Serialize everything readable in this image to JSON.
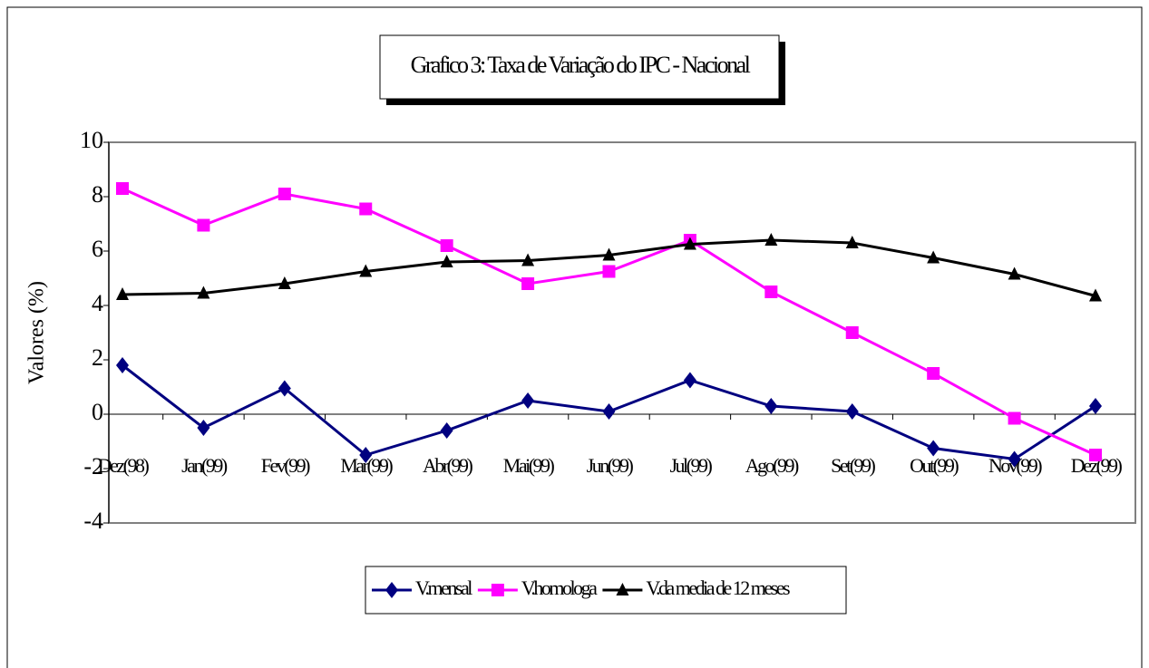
{
  "chart_data": {
    "type": "line",
    "title": "Grafico 3: Taxa de Variação do IPC - Nacional",
    "y_label": "Valores (%)",
    "categories": [
      "Dez(98)",
      "Jan(99)",
      "Fev(99)",
      "Mar(99)",
      "Abr(99)",
      "Mai(99)",
      "Jun(99)",
      "Jul(99)",
      "Ago(99)",
      "Set(99)",
      "Out(99)",
      "Nov(99)",
      "Dez(99)"
    ],
    "series": [
      {
        "name": "V.mensal",
        "color": "#000080",
        "marker": "diamond",
        "values": [
          1.8,
          -0.5,
          0.95,
          -1.5,
          -0.6,
          0.5,
          0.1,
          1.25,
          0.3,
          0.1,
          -1.25,
          -1.65,
          0.3
        ]
      },
      {
        "name": "V.homologa",
        "color": "#ff00ff",
        "marker": "square",
        "values": [
          8.3,
          6.95,
          8.1,
          7.55,
          6.2,
          4.8,
          5.25,
          6.4,
          4.5,
          3.0,
          1.5,
          -0.15,
          -1.5
        ]
      },
      {
        "name": "V.da media de 12 meses",
        "color": "#000000",
        "marker": "triangle",
        "values": [
          4.4,
          4.45,
          4.8,
          5.25,
          5.6,
          5.65,
          5.85,
          6.25,
          6.4,
          6.3,
          5.75,
          5.15,
          4.35
        ]
      }
    ],
    "ylim": [
      -4,
      10
    ],
    "yticks": [
      -4,
      -2,
      0,
      2,
      4,
      6,
      8,
      10
    ]
  }
}
